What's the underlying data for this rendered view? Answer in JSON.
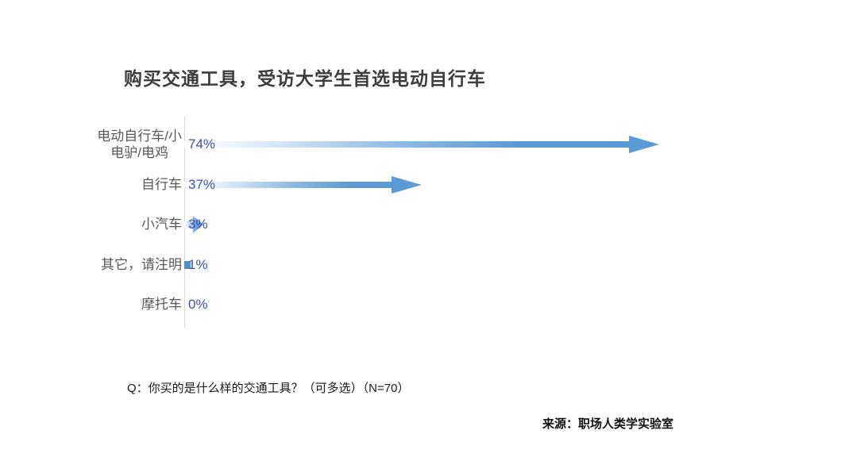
{
  "title": "购买交通工具，受访大学生首选电动自行车",
  "question": "Q：你买的是什么样的交通工具？（可多选）（N=70）",
  "source": "来源：职场人类学实验室",
  "chart_data": {
    "type": "bar",
    "orientation": "horizontal",
    "title": "购买交通工具，受访大学生首选电动自行车",
    "categories": [
      "电动自行车/小电驴/电鸡",
      "自行车",
      "小汽车",
      "其它，请注明",
      "摩托车"
    ],
    "values": [
      74,
      37,
      3,
      1,
      0
    ],
    "unit": "%",
    "xlim": [
      0,
      80
    ],
    "grid": "off",
    "legend": "none",
    "bar_style": "gradient-arrow",
    "rows": [
      {
        "label": "电动自行车/小\n电驴/电鸡",
        "value": 74,
        "value_label": "74%"
      },
      {
        "label": "自行车",
        "value": 37,
        "value_label": "37%"
      },
      {
        "label": "小汽车",
        "value": 3,
        "value_label": "3%"
      },
      {
        "label": "其它，请注明",
        "value": 1,
        "value_label": "1%"
      },
      {
        "label": "摩托车",
        "value": 0,
        "value_label": "0%"
      }
    ],
    "colors": {
      "bar_solid": "#5B9BD5",
      "bar_gradient_start": "#FFFFFF",
      "value_label": "#3F51A5",
      "category_label": "#595959",
      "axis_line": "#D9D9D9",
      "title_text": "#3D3D3D"
    }
  }
}
